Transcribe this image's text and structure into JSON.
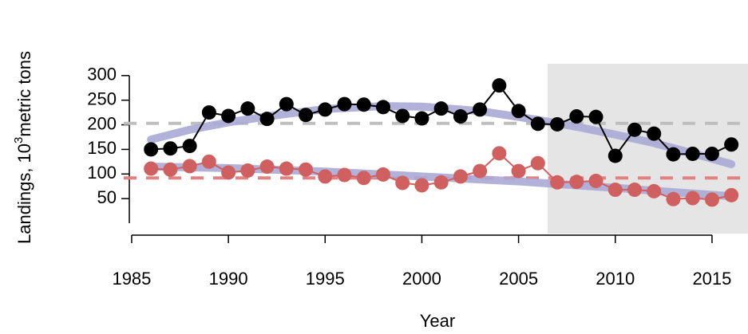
{
  "chart_data": {
    "type": "line",
    "x_label": "Year",
    "y_label_parts": [
      "Landings, 10",
      "3",
      "metric tons"
    ],
    "xlim": [
      1984.59,
      2016.86
    ],
    "ylim": [
      -21,
      324
    ],
    "xticks": [
      1985,
      1990,
      1995,
      2000,
      2005,
      2010,
      2015
    ],
    "yticks": [
      50,
      100,
      150,
      200,
      250,
      300
    ],
    "shaded_x": [
      2006.5,
      2016.86
    ],
    "shade_color": "#e5e5e5",
    "x": [
      1986,
      1987,
      1988,
      1989,
      1990,
      1991,
      1992,
      1993,
      1994,
      1995,
      1996,
      1997,
      1998,
      1999,
      2000,
      2001,
      2002,
      2003,
      2004,
      2005,
      2006,
      2007,
      2008,
      2009,
      2010,
      2011,
      2012,
      2013,
      2014,
      2015,
      2016
    ],
    "series": [
      {
        "color": "#000000",
        "values": [
          150,
          152,
          157,
          225,
          218,
          233,
          212,
          242,
          220,
          231,
          242,
          241,
          236,
          218,
          213,
          233,
          217,
          231,
          280,
          228,
          202,
          201,
          217,
          216,
          137,
          190,
          182,
          140,
          141,
          141,
          160
        ]
      },
      {
        "color": "#d06060",
        "values": [
          111,
          109,
          116,
          125,
          103,
          107,
          115,
          111,
          109,
          95,
          98,
          92,
          99,
          82,
          77,
          83,
          95,
          106,
          142,
          106,
          122,
          83,
          84,
          86,
          68,
          68,
          65,
          49,
          51,
          48,
          57
        ]
      }
    ],
    "hlines": [
      {
        "value": 203,
        "color": "#bebebe"
      },
      {
        "value": 92,
        "color": "#e58080"
      }
    ],
    "trend_color": "#a9a9d6",
    "trends": [
      {
        "x": [
          1986,
          1988,
          1990,
          1992,
          1995,
          1998,
          2000,
          2003,
          2006,
          2008,
          2010,
          2012,
          2014,
          2016
        ],
        "values": [
          170,
          190,
          205,
          217,
          232,
          238,
          237,
          228,
          210,
          196,
          180,
          163,
          142,
          120
        ]
      },
      {
        "x": [
          1986,
          1990,
          1995,
          2000,
          2005,
          2008,
          2010,
          2013,
          2016
        ],
        "values": [
          115,
          112,
          105,
          95,
          85,
          77,
          72,
          63,
          55
        ]
      }
    ]
  }
}
